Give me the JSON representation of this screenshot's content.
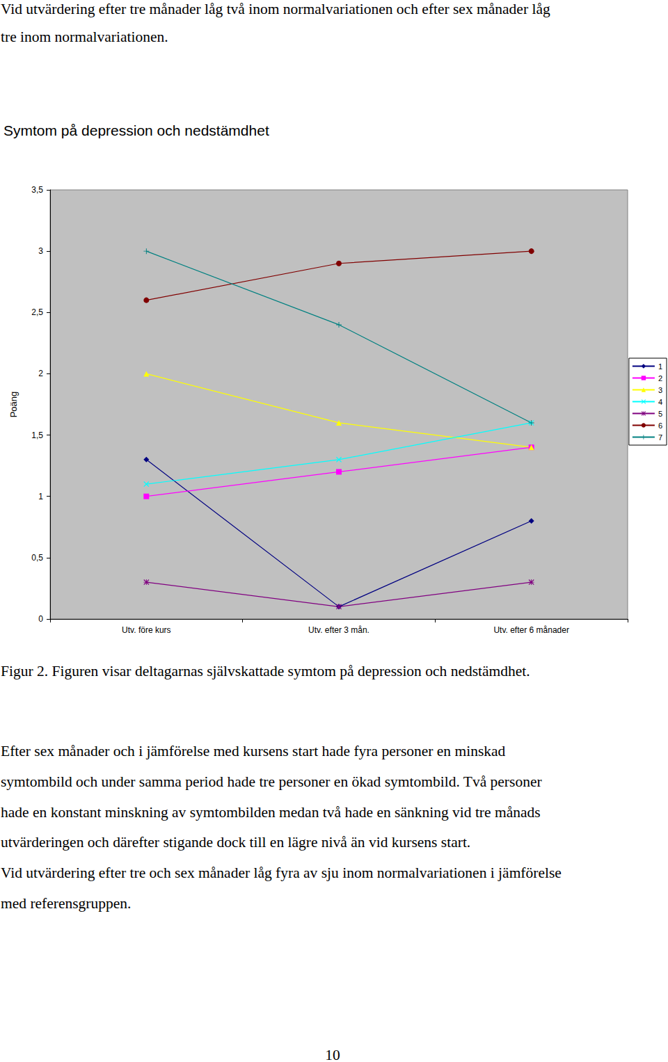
{
  "document": {
    "top_text": [
      "Vid utvärdering efter tre månader låg två inom normalvariationen och efter sex månader låg",
      "tre inom normalvariationen."
    ],
    "caption": "Figur 2. Figuren visar deltagarnas självskattade symtom på depression och nedstämdhet.",
    "paragraph": [
      "Efter sex månader och i jämförelse med kursens start hade fyra personer en minskad",
      "symtombild och under samma period hade tre personer en ökad symtombild. Två personer",
      "hade en konstant minskning av symtombilden medan två hade en sänkning vid tre månads",
      "utvärderingen och därefter stigande dock till en lägre nivå än vid kursens start.",
      "Vid utvärdering efter tre och sex månader låg fyra av sju inom normalvariationen i jämförelse",
      "med referensgruppen."
    ],
    "page_number": "10"
  },
  "chart_data": {
    "type": "line",
    "title": "Symtom på depression och nedstämdhet",
    "ylabel": "Poäng",
    "categories": [
      "Utv. före kurs",
      "Utv. efter 3 mån.",
      "Utv. efter 6 månader"
    ],
    "series": [
      {
        "name": "1",
        "color": "#000080",
        "marker": "diamond",
        "values": [
          1.3,
          0.1,
          0.8
        ]
      },
      {
        "name": "2",
        "color": "#ff00ff",
        "marker": "square",
        "values": [
          1.0,
          1.2,
          1.4
        ]
      },
      {
        "name": "3",
        "color": "#ffff00",
        "marker": "triangle",
        "values": [
          2.0,
          1.6,
          1.4
        ]
      },
      {
        "name": "4",
        "color": "#00ffff",
        "marker": "x",
        "values": [
          1.1,
          1.3,
          1.6
        ]
      },
      {
        "name": "5",
        "color": "#800080",
        "marker": "star",
        "values": [
          0.3,
          0.1,
          0.3
        ]
      },
      {
        "name": "6",
        "color": "#800000",
        "marker": "circle",
        "values": [
          2.6,
          2.9,
          3.0
        ]
      },
      {
        "name": "7",
        "color": "#008080",
        "marker": "plus",
        "values": [
          3.0,
          2.4,
          1.6
        ]
      }
    ],
    "ylim": [
      0,
      3.5
    ],
    "yticks": [
      0,
      {
        "value": 0.5,
        "label": "0,5"
      },
      1,
      {
        "value": 1.5,
        "label": "1,5"
      },
      2,
      {
        "value": 2.5,
        "label": "2,5"
      },
      3,
      {
        "value": 3.5,
        "label": "3,5"
      }
    ],
    "grid": false,
    "legend": "right"
  }
}
